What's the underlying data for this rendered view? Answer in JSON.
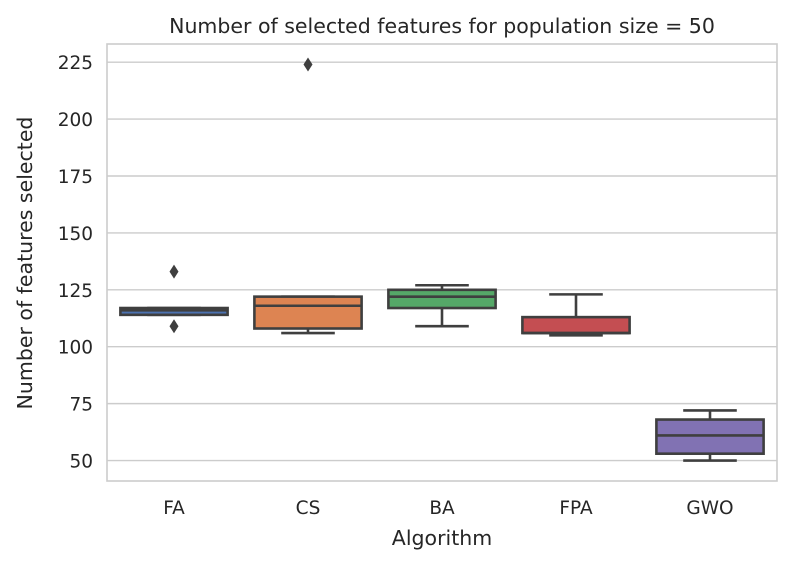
{
  "chart_data": {
    "type": "box",
    "title": "Number of selected features for population size = 50",
    "xlabel": "Algorithm",
    "ylabel": "Number of features selected",
    "ylim": [
      41,
      233
    ],
    "yticks": [
      50,
      75,
      100,
      125,
      150,
      175,
      200,
      225
    ],
    "grid": true,
    "categories": [
      "FA",
      "CS",
      "BA",
      "FPA",
      "GWO"
    ],
    "boxes": [
      {
        "category": "FA",
        "whisker_low": 114,
        "q1": 114,
        "median": 116,
        "q3": 117,
        "whisker_high": 117,
        "outliers": [
          109,
          133
        ],
        "color": "#4c72b0"
      },
      {
        "category": "CS",
        "whisker_low": 106,
        "q1": 108,
        "median": 118,
        "q3": 122,
        "whisker_high": 122,
        "outliers": [
          224
        ],
        "color": "#dd8452"
      },
      {
        "category": "BA",
        "whisker_low": 109,
        "q1": 117,
        "median": 122,
        "q3": 125,
        "whisker_high": 127,
        "outliers": [],
        "color": "#55a868"
      },
      {
        "category": "FPA",
        "whisker_low": 105,
        "q1": 106,
        "median": 106,
        "q3": 113,
        "whisker_high": 123,
        "outliers": [],
        "color": "#c44e52"
      },
      {
        "category": "GWO",
        "whisker_low": 50,
        "q1": 53,
        "median": 61,
        "q3": 68,
        "whisker_high": 72,
        "outliers": [],
        "color": "#8172b3"
      }
    ]
  }
}
